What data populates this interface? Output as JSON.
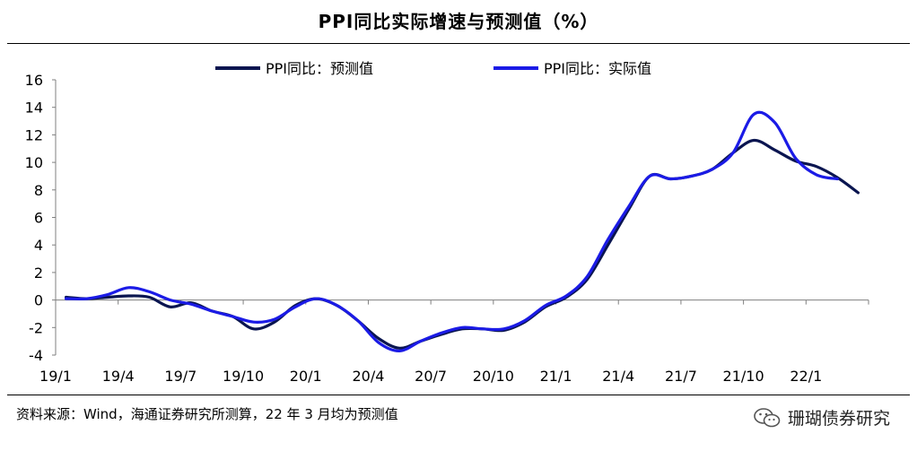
{
  "page_title": "PPI同比实际增速与预测值（%）",
  "source_note": "资料来源：Wind，海通证券研究所测算，22 年 3 月均为预测值",
  "watermark": {
    "text": "珊瑚债券研究",
    "icon": "wechat-icon"
  },
  "chart_data": {
    "type": "line",
    "title": "PPI同比实际增速与预测值（%）",
    "xlabel": "",
    "ylabel": "",
    "ylim": [
      -4,
      16
    ],
    "yticks": [
      -4,
      -2,
      0,
      2,
      4,
      6,
      8,
      10,
      12,
      14,
      16
    ],
    "x_ticks": [
      "19/1",
      "19/4",
      "19/7",
      "19/10",
      "20/1",
      "20/4",
      "20/7",
      "20/10",
      "21/1",
      "21/4",
      "21/7",
      "21/10",
      "22/1"
    ],
    "x_range": [
      "19/1",
      "22/3"
    ],
    "grid": false,
    "legend_placement": "top",
    "colors": {
      "forecast": "#0a1550",
      "actual": "#1b1be6"
    },
    "series": [
      {
        "name": "PPI同比：预测值",
        "x": [
          "19/1",
          "19/2",
          "19/3",
          "19/4",
          "19/5",
          "19/6",
          "19/7",
          "19/8",
          "19/9",
          "19/10",
          "19/11",
          "19/12",
          "20/1",
          "20/2",
          "20/3",
          "20/4",
          "20/5",
          "20/6",
          "20/7",
          "20/8",
          "20/9",
          "20/10",
          "20/11",
          "20/12",
          "21/1",
          "21/2",
          "21/3",
          "21/4",
          "21/5",
          "21/6",
          "21/7",
          "21/8",
          "21/9",
          "21/10",
          "21/11",
          "21/12",
          "22/1",
          "22/2",
          "22/3"
        ],
        "values": [
          0.2,
          0.1,
          0.2,
          0.3,
          0.2,
          -0.5,
          -0.2,
          -0.8,
          -1.2,
          -2.1,
          -1.6,
          -0.4,
          0.1,
          -0.4,
          -1.5,
          -2.8,
          -3.5,
          -3.0,
          -2.5,
          -2.1,
          -2.1,
          -2.2,
          -1.6,
          -0.5,
          0.2,
          1.5,
          4.0,
          6.6,
          9.0,
          8.8,
          9.0,
          9.5,
          10.7,
          11.6,
          10.9,
          10.1,
          9.7,
          8.9,
          7.8
        ]
      },
      {
        "name": "PPI同比：实际值",
        "x": [
          "19/1",
          "19/2",
          "19/3",
          "19/4",
          "19/5",
          "19/6",
          "19/7",
          "19/8",
          "19/9",
          "19/10",
          "19/11",
          "19/12",
          "20/1",
          "20/2",
          "20/3",
          "20/4",
          "20/5",
          "20/6",
          "20/7",
          "20/8",
          "20/9",
          "20/10",
          "20/11",
          "20/12",
          "21/1",
          "21/2",
          "21/3",
          "21/4",
          "21/5",
          "21/6",
          "21/7",
          "21/8",
          "21/9",
          "21/10",
          "21/11",
          "21/12",
          "22/1",
          "22/2"
        ],
        "values": [
          0.1,
          0.1,
          0.4,
          0.9,
          0.6,
          0.0,
          -0.3,
          -0.8,
          -1.2,
          -1.6,
          -1.4,
          -0.5,
          0.1,
          -0.4,
          -1.5,
          -3.1,
          -3.7,
          -3.0,
          -2.4,
          -2.0,
          -2.1,
          -2.1,
          -1.5,
          -0.4,
          0.3,
          1.7,
          4.4,
          6.8,
          9.0,
          8.8,
          9.0,
          9.5,
          10.7,
          13.5,
          12.9,
          10.3,
          9.1,
          8.8
        ]
      }
    ]
  }
}
